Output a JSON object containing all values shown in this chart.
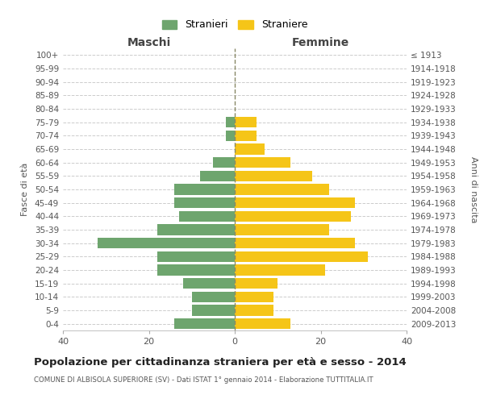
{
  "age_groups": [
    "0-4",
    "5-9",
    "10-14",
    "15-19",
    "20-24",
    "25-29",
    "30-34",
    "35-39",
    "40-44",
    "45-49",
    "50-54",
    "55-59",
    "60-64",
    "65-69",
    "70-74",
    "75-79",
    "80-84",
    "85-89",
    "90-94",
    "95-99",
    "100+"
  ],
  "birth_years": [
    "2009-2013",
    "2004-2008",
    "1999-2003",
    "1994-1998",
    "1989-1993",
    "1984-1988",
    "1979-1983",
    "1974-1978",
    "1969-1973",
    "1964-1968",
    "1959-1963",
    "1954-1958",
    "1949-1953",
    "1944-1948",
    "1939-1943",
    "1934-1938",
    "1929-1933",
    "1924-1928",
    "1919-1923",
    "1914-1918",
    "≤ 1913"
  ],
  "males": [
    14,
    10,
    10,
    12,
    18,
    18,
    32,
    18,
    13,
    14,
    14,
    8,
    5,
    0,
    2,
    2,
    0,
    0,
    0,
    0,
    0
  ],
  "females": [
    13,
    9,
    9,
    10,
    21,
    31,
    28,
    22,
    27,
    28,
    22,
    18,
    13,
    7,
    5,
    5,
    0,
    0,
    0,
    0,
    0
  ],
  "male_color": "#6ea56e",
  "female_color": "#f5c518",
  "background_color": "#ffffff",
  "grid_color": "#cccccc",
  "title": "Popolazione per cittadinanza straniera per età e sesso - 2014",
  "subtitle": "COMUNE DI ALBISOLA SUPERIORE (SV) - Dati ISTAT 1° gennaio 2014 - Elaborazione TUTTITALIA.IT",
  "xlabel_left": "Maschi",
  "xlabel_right": "Femmine",
  "ylabel_left": "Fasce di età",
  "ylabel_right": "Anni di nascita",
  "legend_male": "Stranieri",
  "legend_female": "Straniere",
  "xlim": 40,
  "bar_height": 0.8
}
